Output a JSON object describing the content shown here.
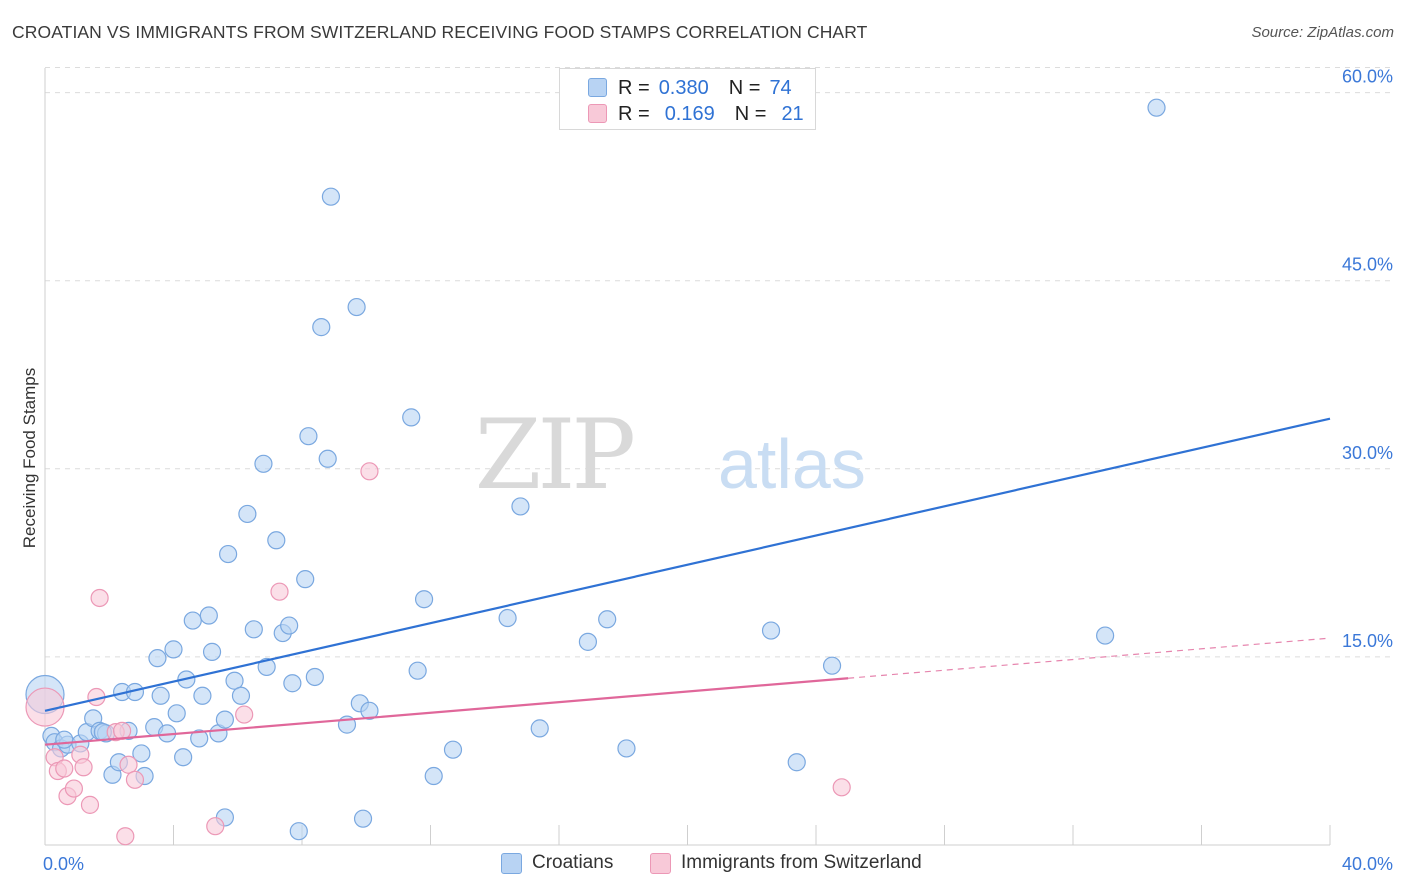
{
  "title": "CROATIAN VS IMMIGRANTS FROM SWITZERLAND RECEIVING FOOD STAMPS CORRELATION CHART",
  "source": "Source: ZipAtlas.com",
  "watermark": {
    "zip": "ZIP",
    "atlas": "atlas"
  },
  "legend": {
    "row1": {
      "r_label": "R =",
      "r_value": "0.380",
      "n_label": "N =",
      "n_value": "74"
    },
    "row2": {
      "r_label": "R =",
      "r_value": "0.169",
      "n_label": "N =",
      "n_value": "21"
    }
  },
  "bottom_legend": {
    "croatians": "Croatians",
    "swiss": "Immigrants from Switzerland"
  },
  "chart_data": {
    "type": "scatter",
    "title": "CROATIAN VS IMMIGRANTS FROM SWITZERLAND RECEIVING FOOD STAMPS CORRELATION CHART",
    "xlabel": "",
    "ylabel": "Receiving Food Stamps",
    "xlim": [
      0,
      40
    ],
    "ylim": [
      0,
      63
    ],
    "x_ticks": [
      "0.0%",
      "40.0%"
    ],
    "y_ticks": [
      {
        "value": 15,
        "label": "15.0%"
      },
      {
        "value": 30,
        "label": "30.0%"
      },
      {
        "value": 45,
        "label": "45.0%"
      },
      {
        "value": 60,
        "label": "60.0%"
      }
    ],
    "grid": true,
    "legend_position": "top-center",
    "colors": {
      "croatians_fill": "#b8d3f3",
      "croatians_stroke": "#7aa8e0",
      "croatians_line": "#2f72d4",
      "swiss_fill": "#f8c9d8",
      "swiss_stroke": "#ec98b6",
      "swiss_line": "#e0679a",
      "tick_label": "#3b78d8"
    },
    "series": [
      {
        "name": "Croatians",
        "r": 0.38,
        "n": 74,
        "trend": {
          "x": [
            0,
            40
          ],
          "y": [
            10.7,
            34.0
          ]
        },
        "points": [
          {
            "x": 0.0,
            "y": 12.0,
            "big": true
          },
          {
            "x": 0.2,
            "y": 8.7
          },
          {
            "x": 0.3,
            "y": 8.2
          },
          {
            "x": 0.5,
            "y": 7.7
          },
          {
            "x": 0.7,
            "y": 8.0
          },
          {
            "x": 1.1,
            "y": 8.1
          },
          {
            "x": 1.3,
            "y": 9.0
          },
          {
            "x": 1.5,
            "y": 10.1
          },
          {
            "x": 1.7,
            "y": 9.1
          },
          {
            "x": 1.9,
            "y": 8.9
          },
          {
            "x": 2.1,
            "y": 5.6
          },
          {
            "x": 2.3,
            "y": 6.6
          },
          {
            "x": 2.4,
            "y": 12.2
          },
          {
            "x": 2.6,
            "y": 9.1
          },
          {
            "x": 2.8,
            "y": 12.2
          },
          {
            "x": 3.0,
            "y": 7.3
          },
          {
            "x": 3.1,
            "y": 5.5
          },
          {
            "x": 3.4,
            "y": 9.4
          },
          {
            "x": 3.5,
            "y": 14.9
          },
          {
            "x": 3.6,
            "y": 11.9
          },
          {
            "x": 3.8,
            "y": 8.9
          },
          {
            "x": 4.0,
            "y": 15.6
          },
          {
            "x": 4.1,
            "y": 10.5
          },
          {
            "x": 4.3,
            "y": 7.0
          },
          {
            "x": 4.4,
            "y": 13.2
          },
          {
            "x": 4.6,
            "y": 17.9
          },
          {
            "x": 4.8,
            "y": 8.5
          },
          {
            "x": 4.9,
            "y": 11.9
          },
          {
            "x": 5.1,
            "y": 18.3
          },
          {
            "x": 5.2,
            "y": 15.4
          },
          {
            "x": 5.4,
            "y": 8.9
          },
          {
            "x": 5.6,
            "y": 10.0
          },
          {
            "x": 5.7,
            "y": 23.2
          },
          {
            "x": 5.9,
            "y": 13.1
          },
          {
            "x": 6.1,
            "y": 11.9
          },
          {
            "x": 6.3,
            "y": 26.4
          },
          {
            "x": 6.5,
            "y": 17.2
          },
          {
            "x": 6.8,
            "y": 30.4
          },
          {
            "x": 6.9,
            "y": 14.2
          },
          {
            "x": 7.2,
            "y": 24.3
          },
          {
            "x": 7.4,
            "y": 16.9
          },
          {
            "x": 7.6,
            "y": 17.5
          },
          {
            "x": 7.7,
            "y": 12.9
          },
          {
            "x": 8.1,
            "y": 21.2
          },
          {
            "x": 8.2,
            "y": 32.6
          },
          {
            "x": 8.4,
            "y": 13.4
          },
          {
            "x": 8.6,
            "y": 41.3
          },
          {
            "x": 8.8,
            "y": 30.8
          },
          {
            "x": 8.9,
            "y": 51.7
          },
          {
            "x": 9.4,
            "y": 9.6
          },
          {
            "x": 9.7,
            "y": 42.9
          },
          {
            "x": 9.8,
            "y": 11.3
          },
          {
            "x": 9.9,
            "y": 2.1
          },
          {
            "x": 10.1,
            "y": 10.7
          },
          {
            "x": 11.4,
            "y": 34.1
          },
          {
            "x": 11.6,
            "y": 13.9
          },
          {
            "x": 11.8,
            "y": 19.6
          },
          {
            "x": 12.1,
            "y": 5.5
          },
          {
            "x": 12.7,
            "y": 7.6
          },
          {
            "x": 14.4,
            "y": 18.1
          },
          {
            "x": 14.8,
            "y": 27.0
          },
          {
            "x": 15.4,
            "y": 9.3
          },
          {
            "x": 16.9,
            "y": 16.2
          },
          {
            "x": 17.5,
            "y": 18.0
          },
          {
            "x": 18.1,
            "y": 7.7
          },
          {
            "x": 22.6,
            "y": 17.1
          },
          {
            "x": 23.4,
            "y": 6.6
          },
          {
            "x": 24.5,
            "y": 14.3
          },
          {
            "x": 33.0,
            "y": 16.7
          },
          {
            "x": 34.6,
            "y": 58.8
          },
          {
            "x": 5.6,
            "y": 2.2
          },
          {
            "x": 7.9,
            "y": 1.1
          },
          {
            "x": 1.8,
            "y": 9.0
          },
          {
            "x": 0.6,
            "y": 8.4
          }
        ]
      },
      {
        "name": "Immigrants from Switzerland",
        "r": 0.169,
        "n": 21,
        "trend": {
          "x": [
            0,
            25
          ],
          "y": [
            8.0,
            13.3
          ]
        },
        "trend_extension": {
          "x": [
            25,
            40
          ],
          "y": [
            13.3,
            16.5
          ]
        },
        "points": [
          {
            "x": 0.0,
            "y": 11.0,
            "big": true
          },
          {
            "x": 0.3,
            "y": 7.0
          },
          {
            "x": 0.4,
            "y": 5.9
          },
          {
            "x": 0.6,
            "y": 6.1
          },
          {
            "x": 0.7,
            "y": 3.9
          },
          {
            "x": 0.9,
            "y": 4.5
          },
          {
            "x": 1.1,
            "y": 7.2
          },
          {
            "x": 1.2,
            "y": 6.2
          },
          {
            "x": 1.4,
            "y": 3.2
          },
          {
            "x": 1.6,
            "y": 11.8
          },
          {
            "x": 1.7,
            "y": 19.7
          },
          {
            "x": 2.2,
            "y": 9.0
          },
          {
            "x": 2.4,
            "y": 9.1
          },
          {
            "x": 2.5,
            "y": 0.7
          },
          {
            "x": 2.6,
            "y": 6.4
          },
          {
            "x": 2.8,
            "y": 5.2
          },
          {
            "x": 5.3,
            "y": 1.5
          },
          {
            "x": 6.2,
            "y": 10.4
          },
          {
            "x": 7.3,
            "y": 20.2
          },
          {
            "x": 10.1,
            "y": 29.8
          },
          {
            "x": 24.8,
            "y": 4.6
          }
        ]
      }
    ]
  }
}
